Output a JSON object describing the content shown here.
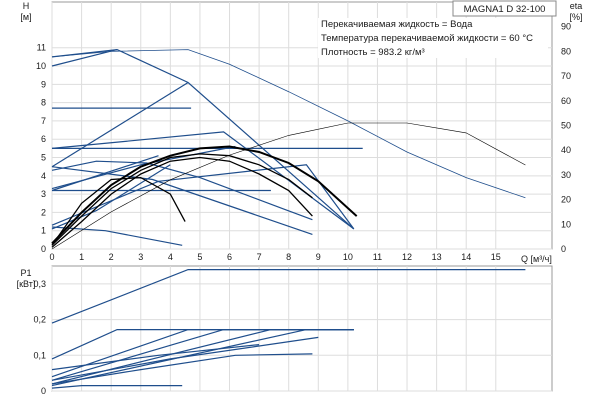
{
  "title": "MAGNA1 D 32-100",
  "info": [
    "Перекачиваемая жидкость = Вода",
    "Температура перекачиваемой жидкости = 60 °C",
    "Плотность = 983.2 кг/м³"
  ],
  "colors": {
    "control": "#1f4e8c",
    "pump": "#000000",
    "frame": "#999999",
    "grid": "#dddddd"
  },
  "chart_data": [
    {
      "type": "line",
      "name": "head",
      "ylabel_top": "H",
      "ylabel_unit": "[м]",
      "y2label_top": "eta",
      "y2label_unit": "[%]",
      "xlabel": "Q [м³/ч]",
      "xlim": [
        0,
        16.9
      ],
      "ylim": [
        0,
        13.5
      ],
      "y2lim": [
        0,
        100
      ],
      "x_ticks": [
        0,
        1,
        2,
        3,
        4,
        5,
        6,
        7,
        8,
        9,
        10,
        11,
        12,
        13,
        14,
        15
      ],
      "y_ticks": [
        0,
        1,
        2,
        3,
        4,
        5,
        6,
        7,
        8,
        9,
        10,
        11
      ],
      "y2_ticks": [
        0,
        10,
        20,
        30,
        40,
        50,
        60,
        70,
        80,
        90
      ],
      "grid": true,
      "control_lines": [
        {
          "x": [
            0,
            2.2,
            4.6,
            10.2
          ],
          "y": [
            10.5,
            10.9,
            9.1,
            1.1
          ]
        },
        {
          "x": [
            0,
            2.2
          ],
          "y": [
            10,
            10.9
          ]
        },
        {
          "x": [
            0,
            4.6
          ],
          "y": [
            4.5,
            9.1
          ]
        },
        {
          "x": [
            0,
            4.7
          ],
          "y": [
            7.7,
            7.7
          ]
        },
        {
          "x": [
            0,
            5.8,
            10.2
          ],
          "y": [
            5.5,
            6.4,
            1.1
          ]
        },
        {
          "x": [
            0,
            3.6
          ],
          "y": [
            3.2,
            5.1
          ]
        },
        {
          "x": [
            0,
            7.4
          ],
          "y": [
            3.2,
            3.2
          ]
        },
        {
          "x": [
            0,
            10.5
          ],
          "y": [
            5.5,
            5.5
          ]
        },
        {
          "x": [
            0,
            3.4,
            8.8
          ],
          "y": [
            4.5,
            3.8,
            0.8
          ]
        },
        {
          "x": [
            0,
            3.6,
            8.6,
            10.2
          ],
          "y": [
            1.3,
            3.7,
            4.6,
            1.1
          ]
        },
        {
          "x": [
            0,
            1.8,
            4.4
          ],
          "y": [
            1.2,
            1.0,
            0.2
          ]
        },
        {
          "x": [
            0,
            1.5,
            2.6,
            4.0
          ],
          "y": [
            1.1,
            2.1,
            3.2,
            4.6
          ]
        },
        {
          "x": [
            0,
            3.0,
            6.2
          ],
          "y": [
            3.3,
            4.6,
            5.6
          ]
        },
        {
          "x": [
            0,
            1.5,
            3.2,
            5.0,
            7.8,
            8.8
          ],
          "y": [
            4.3,
            4.8,
            4.7,
            3.9,
            2.2,
            1.6
          ]
        }
      ],
      "max_curve": {
        "x": [
          0,
          2.0,
          4.6,
          6.0,
          8.0,
          10.0,
          12.0,
          14.0,
          16.0
        ],
        "y": [
          10.5,
          10.8,
          10.9,
          10.1,
          8.6,
          7.0,
          5.3,
          3.9,
          2.8
        ]
      },
      "pump_curves": [
        {
          "x": [
            0,
            1.0,
            2.0,
            3.0,
            4.0,
            5.0,
            6.0,
            7.0,
            8.0,
            9.0,
            10.3
          ],
          "y": [
            0.3,
            2.0,
            3.5,
            4.5,
            5.1,
            5.5,
            5.6,
            5.3,
            4.7,
            3.7,
            1.8
          ]
        },
        {
          "x": [
            0,
            1.0,
            2.0,
            3.0,
            4.0,
            5.0,
            6.0,
            7.0,
            8.0,
            8.8
          ],
          "y": [
            0.2,
            1.8,
            3.3,
            4.3,
            5.0,
            5.2,
            5.1,
            4.6,
            3.8,
            2.8
          ]
        },
        {
          "x": [
            0,
            1.0,
            2.0,
            3.0,
            4.0,
            5.0,
            6.0,
            7.0,
            8.0,
            8.8
          ],
          "y": [
            0.1,
            1.5,
            3.0,
            4.1,
            4.8,
            5.0,
            4.8,
            4.1,
            3.2,
            1.8
          ]
        },
        {
          "x": [
            0,
            1.0,
            2.0,
            3.0,
            4.0,
            4.5
          ],
          "y": [
            0.2,
            2.5,
            3.8,
            3.9,
            3.0,
            1.5
          ]
        }
      ],
      "efficiency_curves": [
        {
          "x": [
            0,
            2.0,
            4.0,
            6.0,
            8.0,
            10.0,
            12.0,
            14.0,
            16.0
          ],
          "y": [
            0,
            15,
            28,
            38,
            46,
            51,
            51,
            47,
            34
          ]
        }
      ]
    },
    {
      "type": "line",
      "name": "power",
      "ylabel_top": "P1",
      "ylabel_unit": "[кВт]",
      "xlim": [
        0,
        16.9
      ],
      "ylim": [
        0,
        0.35
      ],
      "y_ticks": [
        0,
        0.1,
        0.2,
        0.3
      ],
      "y_tick_labels": [
        "0",
        "0,1",
        "0,2",
        "0,3"
      ],
      "grid": true,
      "control_lines": [
        {
          "x": [
            0,
            4.6,
            16.0
          ],
          "y": [
            0.19,
            0.34,
            0.34
          ]
        },
        {
          "x": [
            0,
            2.2,
            10.2
          ],
          "y": [
            0.09,
            0.172,
            0.172
          ]
        },
        {
          "x": [
            0,
            4.6,
            10.2
          ],
          "y": [
            0.04,
            0.172,
            0.172
          ]
        },
        {
          "x": [
            0,
            5.8,
            10.2
          ],
          "y": [
            0.03,
            0.172,
            0.172
          ]
        },
        {
          "x": [
            0,
            7.4,
            10.2
          ],
          "y": [
            0.02,
            0.172,
            0.172
          ]
        },
        {
          "x": [
            0,
            8.6,
            10.2
          ],
          "y": [
            0.015,
            0.172,
            0.172
          ]
        },
        {
          "x": [
            0,
            3.0,
            6.2,
            8.8
          ],
          "y": [
            0.02,
            0.06,
            0.1,
            0.104
          ]
        },
        {
          "x": [
            0,
            3.6,
            7.0
          ],
          "y": [
            0.06,
            0.1,
            0.13
          ]
        },
        {
          "x": [
            0,
            4.0,
            9.0
          ],
          "y": [
            0.03,
            0.09,
            0.15
          ]
        },
        {
          "x": [
            0,
            1.0,
            4.4
          ],
          "y": [
            0.008,
            0.015,
            0.015
          ]
        }
      ]
    }
  ]
}
